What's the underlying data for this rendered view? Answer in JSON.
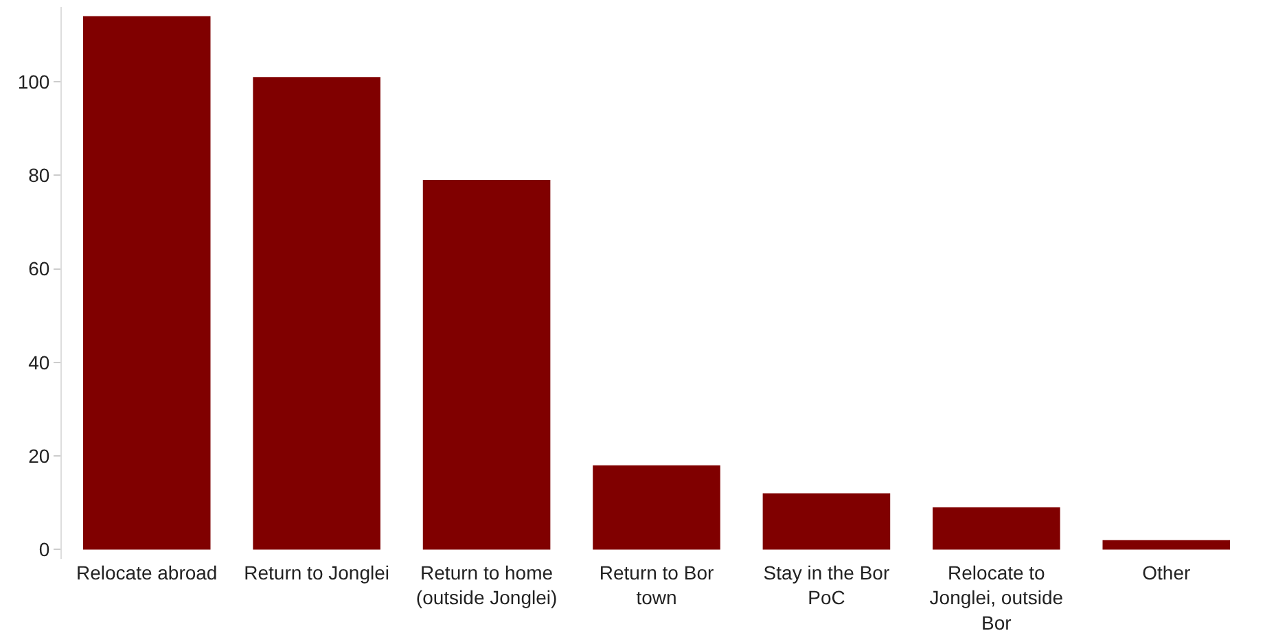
{
  "chart_data": {
    "type": "bar",
    "categories": [
      "Relocate abroad",
      "Return to Jonglei",
      "Return to home (outside Jonglei)",
      "Return to Bor town",
      "Stay in the Bor PoC",
      "Relocate to Jonglei, outside Bor",
      "Other"
    ],
    "values": [
      114,
      101,
      79,
      18,
      12,
      9,
      2
    ],
    "color": "#800000",
    "ylim": [
      -2,
      116
    ],
    "yticks": [
      0,
      20,
      40,
      60,
      80,
      100
    ]
  }
}
